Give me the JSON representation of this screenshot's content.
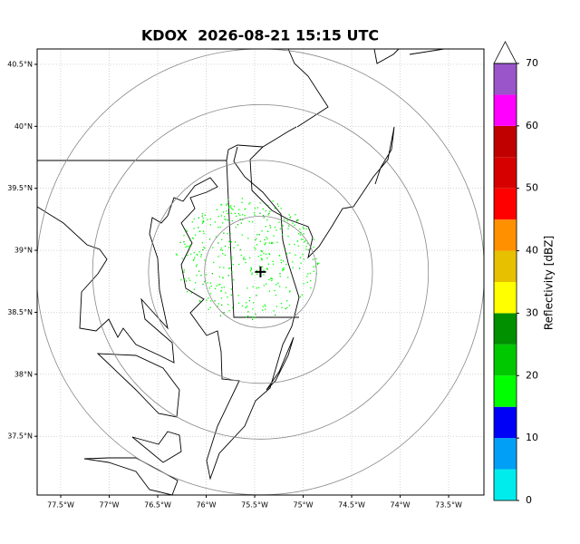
{
  "title": "KDOX  2026-08-21 15:15 UTC",
  "map": {
    "lonlim": [
      -77.743,
      -73.136
    ],
    "latlim": [
      37.026,
      40.624
    ],
    "lonticks": [
      {
        "value": -77.5,
        "label": "77.5°W"
      },
      {
        "value": -77,
        "label": "77°W"
      },
      {
        "value": -76.5,
        "label": "76.5°W"
      },
      {
        "value": -76,
        "label": "76°W"
      },
      {
        "value": -75.5,
        "label": "75.5°W"
      },
      {
        "value": -75,
        "label": "75°W"
      },
      {
        "value": -74.5,
        "label": "74.5°W"
      },
      {
        "value": -74,
        "label": "74°W"
      },
      {
        "value": -73.5,
        "label": "73.5°W"
      }
    ],
    "latticks": [
      {
        "value": 37.5,
        "label": "37.5°N"
      },
      {
        "value": 38,
        "label": "38°N"
      },
      {
        "value": 38.5,
        "label": "38.5°N"
      },
      {
        "value": 39,
        "label": "39°N"
      },
      {
        "value": 39.5,
        "label": "39.5°N"
      },
      {
        "value": 40,
        "label": "40°N"
      },
      {
        "value": 40.5,
        "label": "40.5°N"
      }
    ],
    "grid": true
  },
  "radar": {
    "lat": 38.826,
    "lon": -75.44,
    "range_rings_km": [
      50,
      100,
      150,
      200
    ]
  },
  "colorbar": {
    "label": "Reflectivity [dBZ]",
    "lim": [
      0,
      70
    ],
    "levels": [
      0,
      5,
      10,
      15,
      20,
      25,
      30,
      35,
      40,
      45,
      50,
      55,
      60,
      65,
      70
    ],
    "colors": [
      "#00ecec",
      "#01a0f6",
      "#0000f6",
      "#00ff00",
      "#00c800",
      "#009000",
      "#ffff00",
      "#e7c000",
      "#ff9000",
      "#ff0000",
      "#d60000",
      "#c00000",
      "#ff00ff",
      "#9955c9"
    ],
    "ticks": [
      0,
      10,
      20,
      30,
      40,
      50,
      60,
      70
    ]
  }
}
